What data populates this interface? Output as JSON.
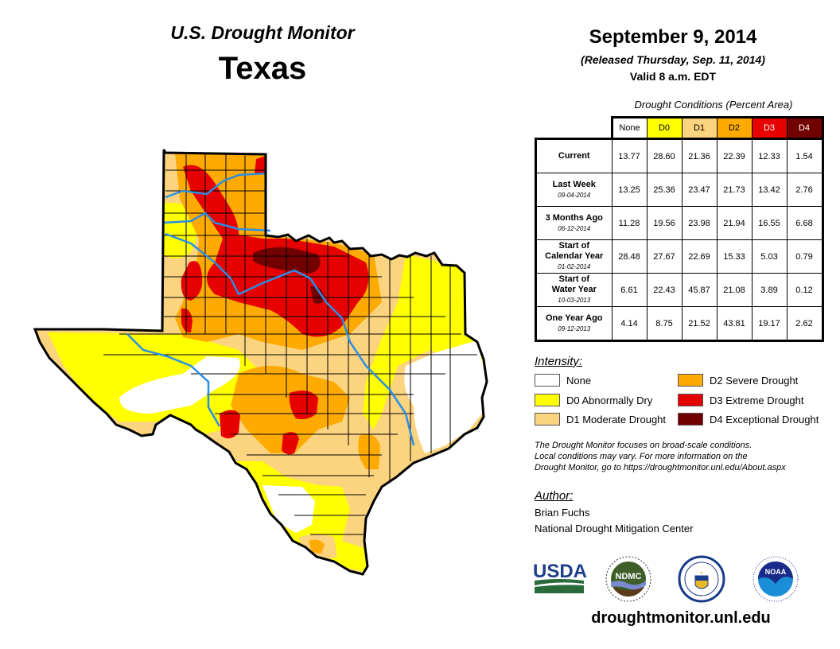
{
  "header": {
    "monitor_title": "U.S. Drought Monitor",
    "state": "Texas",
    "date": "September 9, 2014",
    "release_note": "(Released Thursday, Sep. 11, 2014)",
    "valid_note": "Valid 8 a.m. EDT"
  },
  "table": {
    "caption": "Drought Conditions (Percent Area)",
    "columns": [
      {
        "label": "None",
        "color": "#ffffff",
        "text_color": "#000000"
      },
      {
        "label": "D0",
        "color": "#ffff00",
        "text_color": "#000000"
      },
      {
        "label": "D1",
        "color": "#fcd37f",
        "text_color": "#000000"
      },
      {
        "label": "D2",
        "color": "#ffaa00",
        "text_color": "#000000"
      },
      {
        "label": "D3",
        "color": "#e60000",
        "text_color": "#ffffff"
      },
      {
        "label": "D4",
        "color": "#730000",
        "text_color": "#ffffff"
      }
    ],
    "rows": [
      {
        "label": [
          "Current"
        ],
        "date": "",
        "values": [
          "13.77",
          "28.60",
          "21.36",
          "22.39",
          "12.33",
          "1.54"
        ]
      },
      {
        "label": [
          "Last Week"
        ],
        "date": "09-04-2014",
        "values": [
          "13.25",
          "25.36",
          "23.47",
          "21.73",
          "13.42",
          "2.76"
        ]
      },
      {
        "label": [
          "3 Months Ago"
        ],
        "date": "06-12-2014",
        "values": [
          "11.28",
          "19.56",
          "23.98",
          "21.94",
          "16.55",
          "6.68"
        ]
      },
      {
        "label": [
          "Start of",
          "Calendar Year"
        ],
        "date": "01-02-2014",
        "values": [
          "28.48",
          "27.67",
          "22.69",
          "15.33",
          "5.03",
          "0.79"
        ]
      },
      {
        "label": [
          "Start of",
          "Water Year"
        ],
        "date": "10-03-2013",
        "values": [
          "6.61",
          "22.43",
          "45.87",
          "21.08",
          "3.89",
          "0.12"
        ]
      },
      {
        "label": [
          "One Year Ago"
        ],
        "date": "09-12-2013",
        "values": [
          "4.14",
          "8.75",
          "21.52",
          "43.81",
          "19.17",
          "2.62"
        ]
      }
    ]
  },
  "legend": {
    "heading": "Intensity:",
    "items": [
      {
        "label": "None",
        "color": "#ffffff"
      },
      {
        "label": "D0 Abnormally Dry",
        "color": "#ffff00"
      },
      {
        "label": "D1 Moderate Drought",
        "color": "#fcd37f"
      },
      {
        "label": "D2 Severe Drought",
        "color": "#ffaa00"
      },
      {
        "label": "D3 Extreme Drought",
        "color": "#e60000"
      },
      {
        "label": "D4 Exceptional Drought",
        "color": "#730000"
      }
    ]
  },
  "note": [
    "The Drought Monitor focuses on broad-scale conditions.",
    "Local conditions may vary. For more information on the",
    "Drought Monitor, go to https://droughtmonitor.unl.edu/About.aspx"
  ],
  "author": {
    "heading": "Author:",
    "name": "Brian Fuchs",
    "organization": "National Drought Mitigation Center"
  },
  "logos": {
    "usda": "USDA",
    "ndmc": "NDMC",
    "commerce": "commerce-seal",
    "noaa": "NOAA"
  },
  "footer": {
    "url": "droughtmonitor.unl.edu"
  },
  "colors": {
    "river": "#2b8ee6",
    "border": "#000000",
    "usda_blue": "#1f3f8a",
    "usda_green": "#2a6a3a",
    "ndmc_green": "#3e5f2a",
    "noaa_blue": "#1a2a8a",
    "noaa_light": "#1a8ed6"
  }
}
